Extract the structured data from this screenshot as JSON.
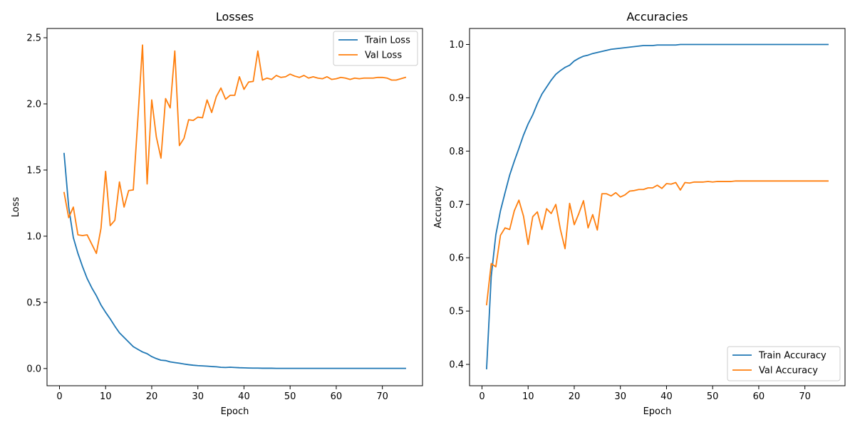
{
  "chart_data": [
    {
      "type": "line",
      "title": "Losses",
      "xlabel": "Epoch",
      "ylabel": "Loss",
      "xlim": [
        -2.7,
        78.7
      ],
      "ylim": [
        -0.13,
        2.57
      ],
      "xticks": [
        0,
        10,
        20,
        30,
        40,
        50,
        60,
        70
      ],
      "yticks": [
        0.0,
        0.5,
        1.0,
        1.5,
        2.0,
        2.5
      ],
      "ytick_decimals": 1,
      "grid": false,
      "legend": "top-right",
      "series": [
        {
          "name": "Train Loss",
          "color": "#1f77b4",
          "x": [
            1,
            2,
            3,
            4,
            5,
            6,
            7,
            8,
            9,
            10,
            11,
            12,
            13,
            14,
            15,
            16,
            17,
            18,
            19,
            20,
            21,
            22,
            23,
            24,
            25,
            26,
            27,
            28,
            29,
            30,
            31,
            32,
            33,
            34,
            35,
            36,
            37,
            38,
            39,
            40,
            41,
            42,
            43,
            44,
            45,
            46,
            47,
            48,
            49,
            50,
            51,
            52,
            53,
            54,
            55,
            56,
            57,
            58,
            59,
            60,
            61,
            62,
            63,
            64,
            65,
            66,
            67,
            68,
            69,
            70,
            71,
            72,
            73,
            74,
            75
          ],
          "values": [
            1.625,
            1.22,
            0.99,
            0.87,
            0.77,
            0.68,
            0.61,
            0.55,
            0.48,
            0.425,
            0.375,
            0.32,
            0.27,
            0.235,
            0.2,
            0.165,
            0.145,
            0.125,
            0.112,
            0.09,
            0.075,
            0.063,
            0.06,
            0.05,
            0.045,
            0.04,
            0.034,
            0.029,
            0.025,
            0.022,
            0.02,
            0.018,
            0.015,
            0.013,
            0.009,
            0.008,
            0.01,
            0.008,
            0.006,
            0.005,
            0.004,
            0.003,
            0.003,
            0.002,
            0.002,
            0.002,
            0.001,
            0.001,
            0.001,
            0.001,
            0.001,
            0.001,
            0.001,
            0.001,
            0.001,
            0.001,
            0.001,
            0.001,
            0.001,
            0.001,
            0.001,
            0.001,
            0.001,
            0.001,
            0.001,
            0.001,
            0.001,
            0.001,
            0.001,
            0.001,
            0.001,
            0.001,
            0.001,
            0.001,
            0.001
          ]
        },
        {
          "name": "Val Loss",
          "color": "#ff7f0e",
          "x": [
            1,
            2,
            3,
            4,
            5,
            6,
            7,
            8,
            9,
            10,
            11,
            12,
            13,
            14,
            15,
            16,
            17,
            18,
            19,
            20,
            21,
            22,
            23,
            24,
            25,
            26,
            27,
            28,
            29,
            30,
            31,
            32,
            33,
            34,
            35,
            36,
            37,
            38,
            39,
            40,
            41,
            42,
            43,
            44,
            45,
            46,
            47,
            48,
            49,
            50,
            51,
            52,
            53,
            54,
            55,
            56,
            57,
            58,
            59,
            60,
            61,
            62,
            63,
            64,
            65,
            66,
            67,
            68,
            69,
            70,
            71,
            72,
            73,
            74,
            75
          ],
          "values": [
            1.33,
            1.14,
            1.22,
            1.01,
            1.005,
            1.01,
            0.94,
            0.87,
            1.06,
            1.49,
            1.08,
            1.12,
            1.41,
            1.22,
            1.345,
            1.35,
            1.89,
            2.445,
            1.395,
            2.03,
            1.75,
            1.59,
            2.04,
            1.97,
            2.4,
            1.685,
            1.74,
            1.88,
            1.875,
            1.9,
            1.895,
            2.03,
            1.935,
            2.055,
            2.12,
            2.035,
            2.065,
            2.065,
            2.205,
            2.11,
            2.165,
            2.17,
            2.4,
            2.18,
            2.195,
            2.185,
            2.215,
            2.2,
            2.205,
            2.225,
            2.21,
            2.2,
            2.215,
            2.195,
            2.205,
            2.195,
            2.19,
            2.205,
            2.185,
            2.19,
            2.2,
            2.195,
            2.185,
            2.195,
            2.19,
            2.195,
            2.195,
            2.195,
            2.2,
            2.2,
            2.195,
            2.18,
            2.18,
            2.19,
            2.2
          ]
        }
      ]
    },
    {
      "type": "line",
      "title": "Accuracies",
      "xlabel": "Epoch",
      "ylabel": "Accuracy",
      "xlim": [
        -2.7,
        78.7
      ],
      "ylim": [
        0.36,
        1.03
      ],
      "xticks": [
        0,
        10,
        20,
        30,
        40,
        50,
        60,
        70
      ],
      "yticks": [
        0.4,
        0.5,
        0.6,
        0.7,
        0.8,
        0.9,
        1.0
      ],
      "ytick_decimals": 1,
      "grid": false,
      "legend": "bottom-right",
      "series": [
        {
          "name": "Train Accuracy",
          "color": "#1f77b4",
          "x": [
            1,
            2,
            3,
            4,
            5,
            6,
            7,
            8,
            9,
            10,
            11,
            12,
            13,
            14,
            15,
            16,
            17,
            18,
            19,
            20,
            21,
            22,
            23,
            24,
            25,
            26,
            27,
            28,
            29,
            30,
            31,
            32,
            33,
            34,
            35,
            36,
            37,
            38,
            39,
            40,
            41,
            42,
            43,
            44,
            45,
            46,
            47,
            48,
            49,
            50,
            51,
            52,
            53,
            54,
            55,
            56,
            57,
            58,
            59,
            60,
            61,
            62,
            63,
            64,
            65,
            66,
            67,
            68,
            69,
            70,
            71,
            72,
            73,
            74,
            75
          ],
          "values": [
            0.392,
            0.565,
            0.643,
            0.688,
            0.722,
            0.755,
            0.781,
            0.805,
            0.83,
            0.851,
            0.868,
            0.889,
            0.907,
            0.92,
            0.933,
            0.944,
            0.951,
            0.957,
            0.961,
            0.969,
            0.974,
            0.978,
            0.98,
            0.983,
            0.985,
            0.987,
            0.989,
            0.991,
            0.992,
            0.993,
            0.994,
            0.995,
            0.996,
            0.997,
            0.998,
            0.998,
            0.998,
            0.999,
            0.999,
            0.999,
            0.999,
            0.999,
            1.0,
            1.0,
            1.0,
            1.0,
            1.0,
            1.0,
            1.0,
            1.0,
            1.0,
            1.0,
            1.0,
            1.0,
            1.0,
            1.0,
            1.0,
            1.0,
            1.0,
            1.0,
            1.0,
            1.0,
            1.0,
            1.0,
            1.0,
            1.0,
            1.0,
            1.0,
            1.0,
            1.0,
            1.0,
            1.0,
            1.0,
            1.0,
            1.0
          ]
        },
        {
          "name": "Val Accuracy",
          "color": "#ff7f0e",
          "x": [
            1,
            2,
            3,
            4,
            5,
            6,
            7,
            8,
            9,
            10,
            11,
            12,
            13,
            14,
            15,
            16,
            17,
            18,
            19,
            20,
            21,
            22,
            23,
            24,
            25,
            26,
            27,
            28,
            29,
            30,
            31,
            32,
            33,
            34,
            35,
            36,
            37,
            38,
            39,
            40,
            41,
            42,
            43,
            44,
            45,
            46,
            47,
            48,
            49,
            50,
            51,
            52,
            53,
            54,
            55,
            56,
            57,
            58,
            59,
            60,
            61,
            62,
            63,
            64,
            65,
            66,
            67,
            68,
            69,
            70,
            71,
            72,
            73,
            74,
            75
          ],
          "values": [
            0.512,
            0.589,
            0.583,
            0.642,
            0.656,
            0.653,
            0.688,
            0.708,
            0.678,
            0.625,
            0.677,
            0.686,
            0.653,
            0.692,
            0.683,
            0.7,
            0.653,
            0.617,
            0.702,
            0.662,
            0.683,
            0.707,
            0.656,
            0.681,
            0.652,
            0.72,
            0.72,
            0.716,
            0.722,
            0.714,
            0.718,
            0.725,
            0.726,
            0.728,
            0.728,
            0.731,
            0.731,
            0.736,
            0.73,
            0.739,
            0.738,
            0.741,
            0.727,
            0.741,
            0.74,
            0.742,
            0.742,
            0.742,
            0.743,
            0.742,
            0.743,
            0.743,
            0.743,
            0.743,
            0.744,
            0.744,
            0.744,
            0.744,
            0.744,
            0.744,
            0.744,
            0.744,
            0.744,
            0.744,
            0.744,
            0.744,
            0.744,
            0.744,
            0.744,
            0.744,
            0.744,
            0.744,
            0.744,
            0.744,
            0.744
          ]
        }
      ]
    }
  ]
}
